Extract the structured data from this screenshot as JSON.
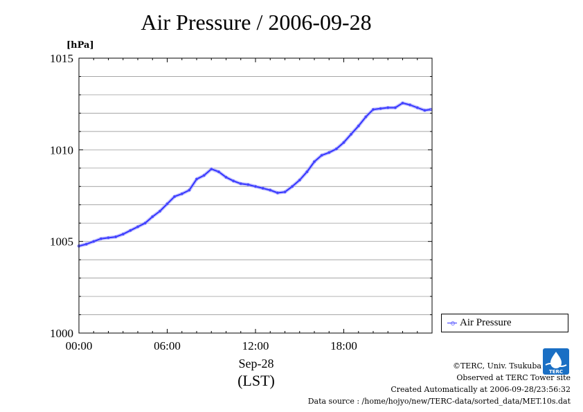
{
  "chart_data": {
    "type": "line",
    "title": "Air Pressure / 2006-09-28",
    "ylabel": "[hPa]",
    "xlabel_line1": "Sep-28",
    "xlabel_line2": "(LST)",
    "ylim": [
      1000,
      1015
    ],
    "yticks": [
      1000,
      1005,
      1010,
      1015
    ],
    "y_minor_step": 1,
    "xlim": [
      0,
      24
    ],
    "xticks": [
      {
        "value": 0,
        "label": "00:00"
      },
      {
        "value": 6,
        "label": "06:00"
      },
      {
        "value": 12,
        "label": "12:00"
      },
      {
        "value": 18,
        "label": "18:00"
      }
    ],
    "grid": true,
    "legend_position": "right",
    "series": [
      {
        "name": "Air Pressure",
        "color": "#3333ff",
        "x": [
          0,
          0.5,
          1,
          1.5,
          2,
          2.5,
          3,
          3.5,
          4,
          4.5,
          5,
          5.5,
          6,
          6.5,
          7,
          7.5,
          8,
          8.5,
          9,
          9.5,
          10,
          10.5,
          11,
          11.5,
          12,
          12.5,
          13,
          13.5,
          14,
          14.5,
          15,
          15.5,
          16,
          16.5,
          17,
          17.5,
          18,
          18.5,
          19,
          19.5,
          20,
          20.5,
          21,
          21.5,
          22,
          22.5,
          23,
          23.5,
          23.9
        ],
        "y": [
          1004.75,
          1004.85,
          1005.0,
          1005.15,
          1005.2,
          1005.25,
          1005.4,
          1005.6,
          1005.8,
          1006.0,
          1006.35,
          1006.65,
          1007.05,
          1007.45,
          1007.6,
          1007.8,
          1008.4,
          1008.6,
          1008.95,
          1008.8,
          1008.5,
          1008.3,
          1008.15,
          1008.1,
          1008.0,
          1007.9,
          1007.8,
          1007.65,
          1007.7,
          1008.0,
          1008.35,
          1008.8,
          1009.35,
          1009.7,
          1009.85,
          1010.05,
          1010.4,
          1010.85,
          1011.3,
          1011.8,
          1012.2,
          1012.25,
          1012.3,
          1012.3,
          1012.55,
          1012.45,
          1012.3,
          1012.15,
          1012.2
        ]
      }
    ]
  },
  "credits": {
    "copyright": "©TERC, Univ. Tsukuba",
    "site": "Observed at TERC Tower site",
    "created": "Created Automatically at 2006-09-28/23:56:32",
    "source": "Data source : /home/hojyo/new/TERC-data/sorted_data/MET.10s.dat"
  },
  "logo": {
    "icon": "terc-logo-icon",
    "text": "TERC"
  }
}
